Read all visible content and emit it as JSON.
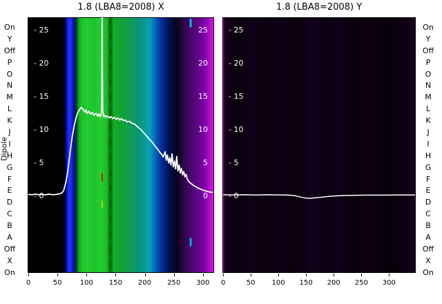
{
  "chart_data": [
    {
      "type": "heatmap+line",
      "title": "1.8 (LBA8=2008) X",
      "ylabel": "Dipole",
      "row_labels": [
        "On",
        "Y",
        "Off",
        "P",
        "O",
        "N",
        "M",
        "L",
        "K",
        "J",
        "I",
        "H",
        "G",
        "F",
        "E",
        "D",
        "C",
        "B",
        "A",
        "Off",
        "X",
        "On"
      ],
      "x_range": [
        0,
        318
      ],
      "xticks": [
        0,
        50,
        100,
        150,
        200,
        250,
        300
      ],
      "y_top_value": 26.8,
      "y_bottom_value": -11.6,
      "yticks": [
        25,
        20,
        15,
        10,
        5,
        0
      ],
      "ytick_prefix": "- ",
      "show_right_tick_labels": true,
      "line_color": "#ffffff",
      "heatmap_column_stops": [
        [
          0.0,
          "#000000"
        ],
        [
          0.196,
          "#010101"
        ],
        [
          0.205,
          "#0008b0"
        ],
        [
          0.217,
          "#2030f8"
        ],
        [
          0.231,
          "#1c2cee"
        ],
        [
          0.243,
          "#0a16b0"
        ],
        [
          0.254,
          "#071e4e"
        ],
        [
          0.262,
          "#0a4a16"
        ],
        [
          0.272,
          "#12a422"
        ],
        [
          0.289,
          "#1cc42a"
        ],
        [
          0.32,
          "#22cc30"
        ],
        [
          0.355,
          "#1ec42c"
        ],
        [
          0.39,
          "#24ce32"
        ],
        [
          0.425,
          "#1abc28"
        ],
        [
          0.437,
          "#0c7a16"
        ],
        [
          0.448,
          "#0b7014"
        ],
        [
          0.46,
          "#16aa26"
        ],
        [
          0.49,
          "#14a62c"
        ],
        [
          0.525,
          "#10a042"
        ],
        [
          0.56,
          "#0d9a5c"
        ],
        [
          0.6,
          "#0a9478"
        ],
        [
          0.63,
          "#089a96"
        ],
        [
          0.652,
          "#06a2b2"
        ],
        [
          0.674,
          "#0580c0"
        ],
        [
          0.696,
          "#0552b4"
        ],
        [
          0.719,
          "#043098"
        ],
        [
          0.741,
          "#031c76"
        ],
        [
          0.763,
          "#02124e"
        ],
        [
          0.785,
          "#02092e"
        ],
        [
          0.804,
          "#0a051e"
        ],
        [
          0.822,
          "#1e0534"
        ],
        [
          0.844,
          "#32064c"
        ],
        [
          0.867,
          "#420564"
        ],
        [
          0.889,
          "#500676"
        ],
        [
          0.911,
          "#5c0684"
        ],
        [
          0.933,
          "#6a0694"
        ],
        [
          0.952,
          "#7c06a6"
        ],
        [
          0.97,
          "#9a08c0"
        ],
        [
          0.985,
          "#c20ad8"
        ],
        [
          1.0,
          "#e012ee"
        ]
      ],
      "marks": [
        {
          "name": "dark-dashed-line",
          "x": 141,
          "v1": 26.8,
          "v2": -11.6,
          "color": "rgba(0,70,0,0.55)",
          "w": 2,
          "dash": "9 13"
        },
        {
          "name": "red-mark",
          "x": 127,
          "v1": 3.4,
          "v2": 2.1,
          "color": "#cc2200",
          "w": 2
        },
        {
          "name": "yellow-mark",
          "x": 127,
          "v1": -0.8,
          "v2": -1.9,
          "color": "#cccc00",
          "w": 2
        },
        {
          "name": "cyan-mark-top",
          "x": 279,
          "v1": 26.7,
          "v2": 25.4,
          "color": "#00b4e6",
          "w": 3
        },
        {
          "name": "cyan-mark",
          "x": 279,
          "v1": -6.4,
          "v2": -7.7,
          "color": "#00a0dc",
          "w": 3
        }
      ],
      "line_points": [
        [
          0,
          0.15
        ],
        [
          6,
          0.1
        ],
        [
          12,
          0.2
        ],
        [
          18,
          0.1
        ],
        [
          24,
          0.15
        ],
        [
          30,
          0.1
        ],
        [
          36,
          0.2
        ],
        [
          42,
          0.1
        ],
        [
          48,
          0.15
        ],
        [
          54,
          0.25
        ],
        [
          58,
          0.4
        ],
        [
          61,
          0.8
        ],
        [
          64,
          1.8
        ],
        [
          67,
          3.2
        ],
        [
          70,
          5.2
        ],
        [
          73,
          7.4
        ],
        [
          76,
          9.2
        ],
        [
          79,
          10.6
        ],
        [
          82,
          11.7
        ],
        [
          85,
          12.5
        ],
        [
          88,
          13.0
        ],
        [
          91,
          13.3
        ],
        [
          94,
          13.0
        ],
        [
          97,
          12.6
        ],
        [
          99,
          12.9
        ],
        [
          101,
          12.4
        ],
        [
          104,
          12.7
        ],
        [
          107,
          12.3
        ],
        [
          110,
          12.5
        ],
        [
          113,
          12.1
        ],
        [
          116,
          12.4
        ],
        [
          119,
          12.0
        ],
        [
          121,
          12.3
        ],
        [
          123,
          11.9
        ],
        [
          125,
          12.1
        ],
        [
          126.3,
          13.5
        ],
        [
          127,
          27.5
        ],
        [
          127.7,
          13.2
        ],
        [
          129,
          11.9
        ],
        [
          131,
          12.1
        ],
        [
          133,
          11.8
        ],
        [
          136,
          12.0
        ],
        [
          139,
          11.7
        ],
        [
          142,
          11.9
        ],
        [
          145,
          11.6
        ],
        [
          148,
          11.8
        ],
        [
          151,
          11.5
        ],
        [
          154,
          11.7
        ],
        [
          157,
          11.4
        ],
        [
          160,
          11.6
        ],
        [
          163,
          11.3
        ],
        [
          166,
          11.4
        ],
        [
          170,
          11.1
        ],
        [
          174,
          11.2
        ],
        [
          178,
          10.9
        ],
        [
          182,
          10.8
        ],
        [
          186,
          10.5
        ],
        [
          190,
          10.2
        ],
        [
          194,
          9.9
        ],
        [
          198,
          9.5
        ],
        [
          202,
          9.1
        ],
        [
          206,
          8.7
        ],
        [
          210,
          8.3
        ],
        [
          214,
          7.9
        ],
        [
          218,
          7.4
        ],
        [
          222,
          7.0
        ],
        [
          226,
          6.5
        ],
        [
          229,
          6.2
        ],
        [
          232,
          5.8
        ],
        [
          235,
          6.6
        ],
        [
          237,
          5.3
        ],
        [
          239,
          6.1
        ],
        [
          241,
          4.9
        ],
        [
          243,
          5.7
        ],
        [
          245,
          4.6
        ],
        [
          247,
          6.3
        ],
        [
          249,
          4.3
        ],
        [
          251,
          5.2
        ],
        [
          253,
          4.0
        ],
        [
          255,
          5.9
        ],
        [
          257,
          3.7
        ],
        [
          259,
          4.6
        ],
        [
          261,
          3.4
        ],
        [
          263,
          4.1
        ],
        [
          265,
          3.1
        ],
        [
          267,
          3.6
        ],
        [
          269,
          2.8
        ],
        [
          271,
          3.2
        ],
        [
          273,
          2.5
        ],
        [
          275,
          2.2
        ],
        [
          278,
          1.9
        ],
        [
          281,
          1.7
        ],
        [
          284,
          1.5
        ],
        [
          288,
          1.3
        ],
        [
          292,
          1.1
        ],
        [
          296,
          0.95
        ],
        [
          300,
          0.8
        ],
        [
          304,
          0.7
        ],
        [
          308,
          0.6
        ],
        [
          312,
          0.5
        ],
        [
          317,
          0.45
        ]
      ]
    },
    {
      "type": "heatmap+line",
      "title": "1.8 (LBA8=2008) Y",
      "ylabel": "",
      "x_range": [
        0,
        347
      ],
      "xticks": [
        0,
        50,
        100,
        150,
        200,
        250,
        300
      ],
      "y_top_value": 26.8,
      "y_bottom_value": -11.6,
      "yticks": [
        25,
        20,
        15,
        10,
        5,
        0
      ],
      "ytick_prefix": "- ",
      "show_right_tick_labels": false,
      "line_color": "#ffffff",
      "heatmap_column_stops": [
        [
          0.0,
          "#c400cc"
        ],
        [
          0.006,
          "#30003a"
        ],
        [
          0.015,
          "#0e0012"
        ],
        [
          0.08,
          "#0a000d"
        ],
        [
          0.16,
          "#110018"
        ],
        [
          0.22,
          "#0a000d"
        ],
        [
          0.3,
          "#0f0015"
        ],
        [
          0.38,
          "#090009"
        ],
        [
          0.46,
          "#13001d"
        ],
        [
          0.52,
          "#0b0010"
        ],
        [
          0.6,
          "#100018"
        ],
        [
          0.68,
          "#080008"
        ],
        [
          0.76,
          "#0e0013"
        ],
        [
          0.85,
          "#070007"
        ],
        [
          0.93,
          "#0c0011"
        ],
        [
          1.0,
          "#16001e"
        ]
      ],
      "marks": [],
      "line_points": [
        [
          0,
          0.1
        ],
        [
          20,
          0.08
        ],
        [
          40,
          0.1
        ],
        [
          60,
          0.07
        ],
        [
          80,
          0.1
        ],
        [
          100,
          0.08
        ],
        [
          120,
          0.05
        ],
        [
          130,
          -0.05
        ],
        [
          140,
          -0.25
        ],
        [
          150,
          -0.4
        ],
        [
          158,
          -0.45
        ],
        [
          166,
          -0.35
        ],
        [
          175,
          -0.3
        ],
        [
          185,
          -0.2
        ],
        [
          195,
          -0.12
        ],
        [
          210,
          -0.05
        ],
        [
          230,
          0.0
        ],
        [
          260,
          0.05
        ],
        [
          290,
          0.05
        ],
        [
          320,
          0.06
        ],
        [
          347,
          0.06
        ]
      ]
    }
  ]
}
